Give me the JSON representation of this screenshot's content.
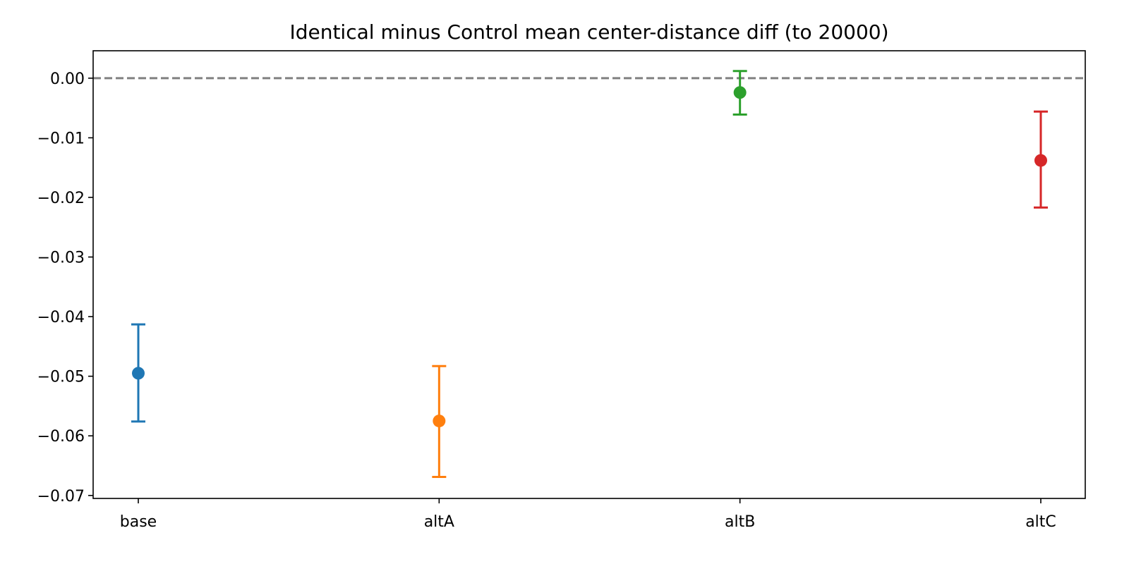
{
  "chart_data": {
    "type": "scatter",
    "title": "Identical minus Control mean center-distance diff (to 20000)",
    "xlabel": "",
    "ylabel": "",
    "categories": [
      "base",
      "altA",
      "altB",
      "altC"
    ],
    "values": [
      -0.0495,
      -0.0575,
      -0.0024,
      -0.0138
    ],
    "error_low": [
      -0.0576,
      -0.0669,
      -0.0061,
      -0.0217
    ],
    "error_high": [
      -0.0413,
      -0.0483,
      0.0012,
      -0.0056
    ],
    "colors": [
      "#1f77b4",
      "#ff7f0e",
      "#2ca02c",
      "#d62728"
    ],
    "ylim": [
      -0.0705,
      0.0046
    ],
    "yticks": [
      0.0,
      -0.01,
      -0.02,
      -0.03,
      -0.04,
      -0.05,
      -0.06,
      -0.07
    ],
    "ytick_labels": [
      "0.00",
      "−0.01",
      "−0.02",
      "−0.03",
      "−0.04",
      "−0.05",
      "−0.06",
      "−0.07"
    ],
    "reference_line": {
      "y": 0.0,
      "style": "dashed",
      "color": "#808080"
    },
    "grid": false,
    "legend": "none"
  }
}
